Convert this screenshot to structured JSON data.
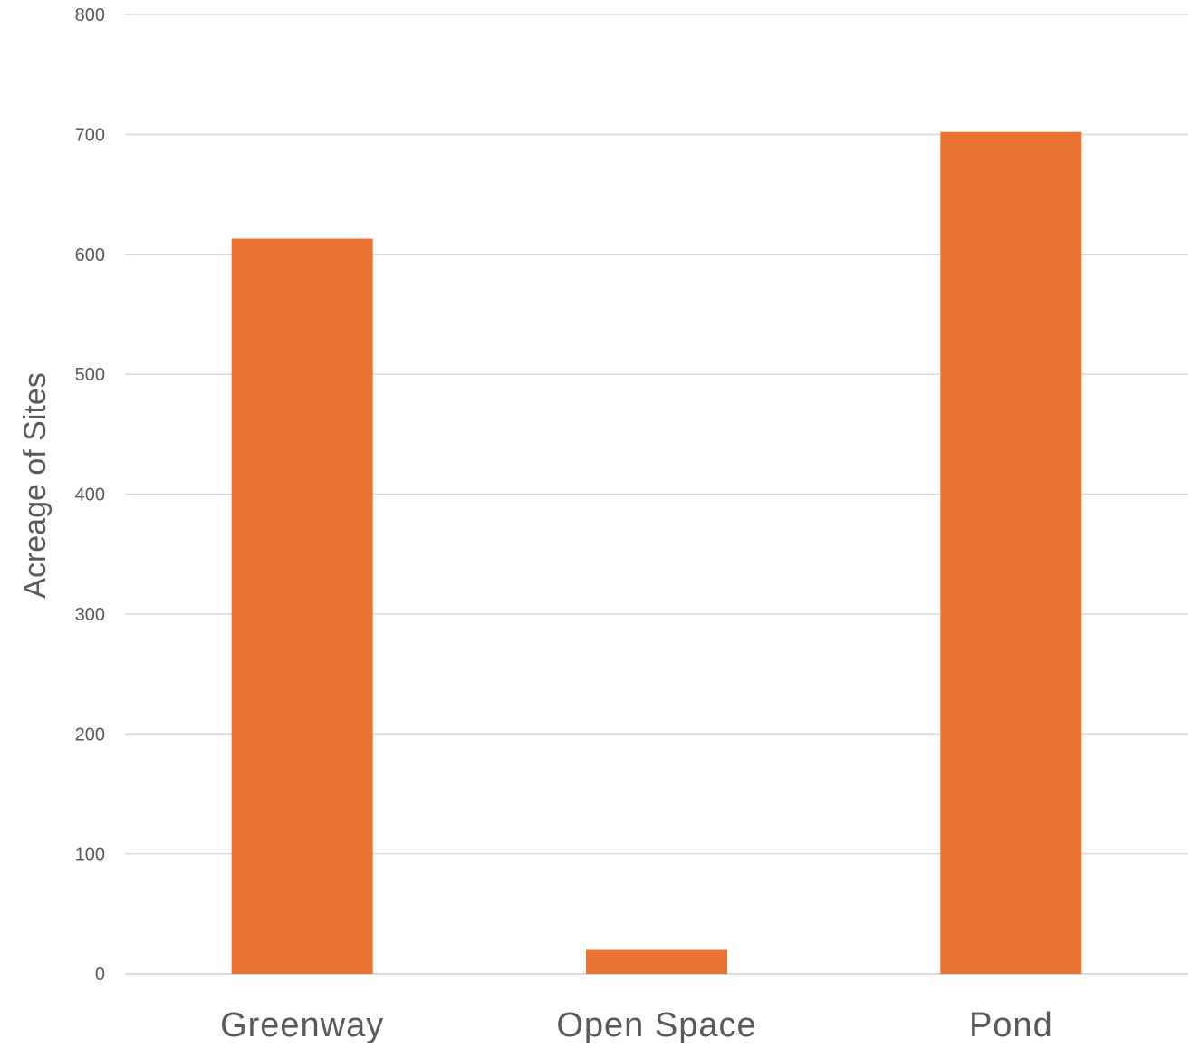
{
  "chart_data": {
    "type": "bar",
    "categories": [
      "Greenway",
      "Open Space",
      "Pond"
    ],
    "series": [
      {
        "values": [
          613,
          20,
          702
        ],
        "color": "#E97132"
      }
    ],
    "title": "",
    "xlabel": "",
    "ylabel": "Acreage of Sites",
    "ylim": [
      0,
      800
    ],
    "yticks": [
      0,
      100,
      200,
      300,
      400,
      500,
      600,
      700,
      800
    ],
    "grid": true,
    "legend": "none"
  }
}
